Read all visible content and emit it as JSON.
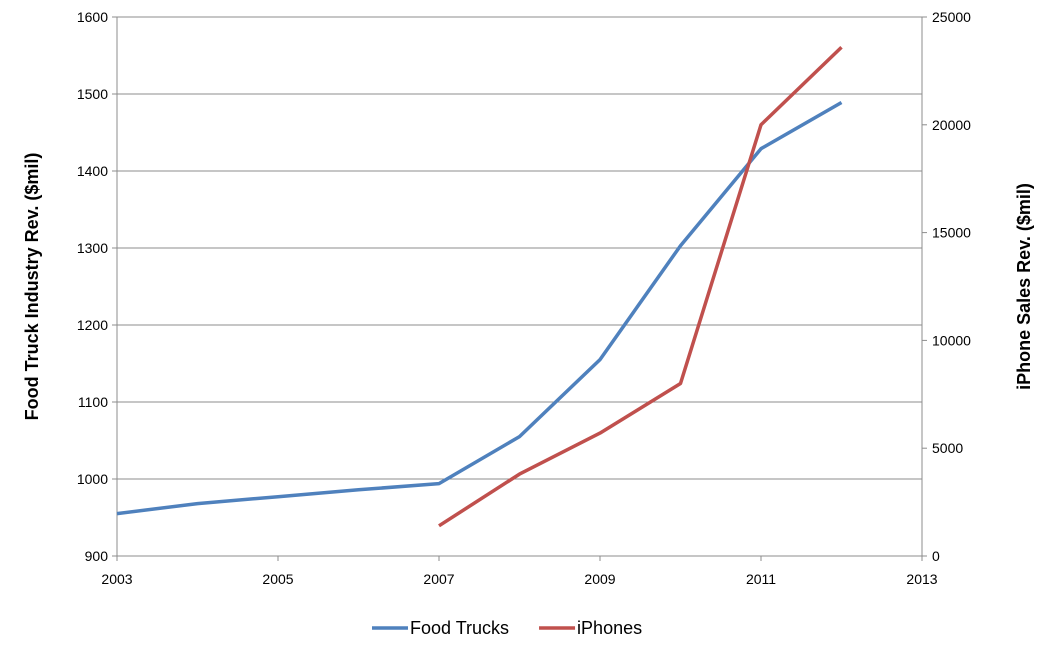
{
  "chart_data": {
    "type": "line",
    "x_label": "",
    "y_left_label": "Food Truck Industry Rev. ($mil)",
    "y_right_label": "iPhone Sales Rev. ($mil)",
    "x_range": [
      2003,
      2013
    ],
    "x_ticks": [
      "2003",
      "2005",
      "2007",
      "2009",
      "2011",
      "2013"
    ],
    "y_left_range": [
      900,
      1600
    ],
    "y_left_ticks": [
      "900",
      "1000",
      "1100",
      "1200",
      "1300",
      "1400",
      "1500",
      "1600"
    ],
    "y_right_range": [
      0,
      25000
    ],
    "y_right_ticks": [
      "0",
      "5000",
      "10000",
      "15000",
      "20000",
      "25000"
    ],
    "grid": "horizontal",
    "legend_position": "bottom",
    "series": [
      {
        "name": "Food Trucks",
        "axis": "left",
        "color": "#4F81BD",
        "points": [
          {
            "x": 2003,
            "y": 955
          },
          {
            "x": 2004,
            "y": 968
          },
          {
            "x": 2005,
            "y": 977
          },
          {
            "x": 2006,
            "y": 986
          },
          {
            "x": 2007,
            "y": 994
          },
          {
            "x": 2008,
            "y": 1055
          },
          {
            "x": 2009,
            "y": 1155
          },
          {
            "x": 2010,
            "y": 1303
          },
          {
            "x": 2011,
            "y": 1429
          },
          {
            "x": 2012,
            "y": 1489
          }
        ]
      },
      {
        "name": "iPhones",
        "axis": "right",
        "color": "#C0504D",
        "points": [
          {
            "x": 2007,
            "y": 1400
          },
          {
            "x": 2008,
            "y": 3800
          },
          {
            "x": 2009,
            "y": 5700
          },
          {
            "x": 2010,
            "y": 8000
          },
          {
            "x": 2011,
            "y": 20000
          },
          {
            "x": 2012,
            "y": 23600
          }
        ]
      }
    ]
  }
}
